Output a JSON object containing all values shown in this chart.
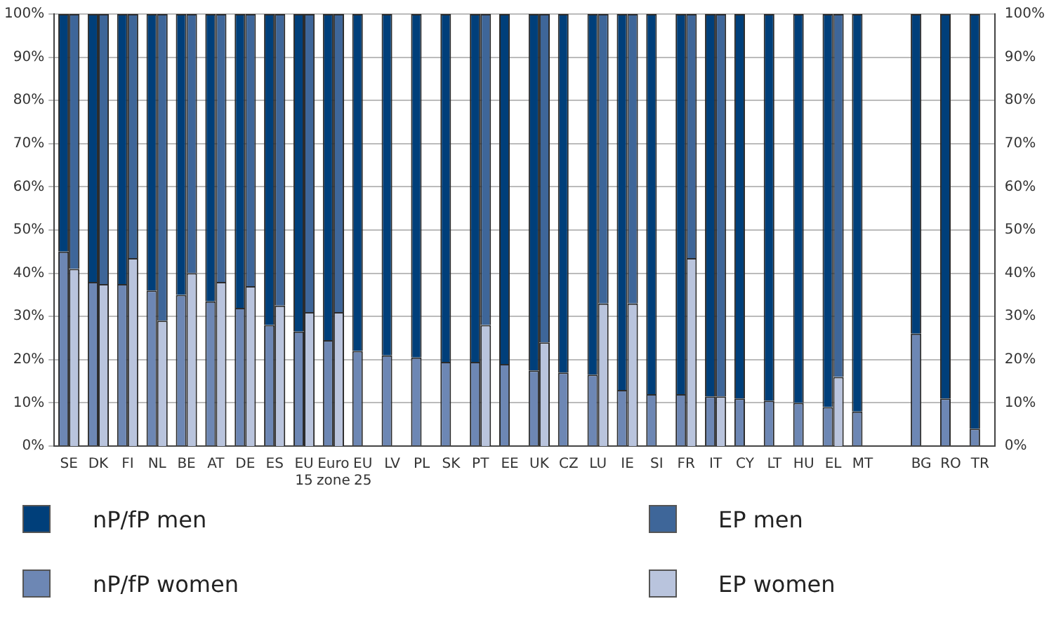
{
  "chart_data": {
    "type": "bar",
    "stacked": true,
    "categories": [
      "SE",
      "DK",
      "FI",
      "NL",
      "BE",
      "AT",
      "DE",
      "ES",
      "EU 15",
      "Euro zone",
      "EU 25",
      "LV",
      "PL",
      "SK",
      "PT",
      "EE",
      "UK",
      "CZ",
      "LU",
      "IE",
      "SI",
      "FR",
      "IT",
      "CY",
      "LT",
      "HU",
      "EL",
      "MT",
      null,
      "BG",
      "RO",
      "TR"
    ],
    "series": [
      {
        "name": "nP/fP women",
        "color": "#6d87b4",
        "values": [
          45,
          38,
          37.5,
          36,
          35,
          33.5,
          32,
          28,
          26.5,
          24.5,
          22,
          21,
          20.5,
          19.5,
          19.5,
          19,
          17.5,
          17,
          16.5,
          13,
          12,
          12,
          11.5,
          11,
          10.5,
          10,
          9,
          8,
          null,
          26,
          11,
          4
        ]
      },
      {
        "name": "nP/fP men",
        "color": "#003f7a",
        "values": [
          55,
          62,
          62.5,
          64,
          65,
          66.5,
          68,
          72,
          73.5,
          75.5,
          78,
          79,
          79.5,
          80.5,
          80.5,
          81,
          82.5,
          83,
          83.5,
          87,
          88,
          88,
          88.5,
          89,
          89.5,
          90,
          91,
          92,
          null,
          74,
          89,
          96
        ]
      },
      {
        "name": "EP women",
        "color": "#b9c4dd",
        "axis": "y2",
        "values": [
          41,
          37.5,
          43.5,
          29,
          40,
          38,
          37,
          32.5,
          31,
          31,
          null,
          null,
          null,
          null,
          28,
          null,
          24,
          null,
          33,
          33,
          null,
          43.5,
          11.5,
          null,
          null,
          null,
          16,
          null,
          null,
          null,
          null,
          null
        ]
      },
      {
        "name": "EP men",
        "color": "#3e6699",
        "axis": "y2",
        "values": [
          59,
          62.5,
          56.5,
          71,
          60,
          62,
          63,
          67.5,
          69,
          69,
          null,
          null,
          null,
          null,
          72,
          null,
          76,
          null,
          67,
          67,
          null,
          56.5,
          88.5,
          null,
          null,
          null,
          84,
          null,
          null,
          null,
          null,
          null
        ]
      }
    ],
    "ylim": [
      0,
      100
    ],
    "yticks": [
      {
        "value": 0,
        "label": "0%"
      },
      {
        "value": 10,
        "label": "10%"
      },
      {
        "value": 20,
        "label": "20%"
      },
      {
        "value": 30,
        "label": "30%"
      },
      {
        "value": 40,
        "label": "40%"
      },
      {
        "value": 50,
        "label": "50%"
      },
      {
        "value": 60,
        "label": "60%"
      },
      {
        "value": 70,
        "label": "70%"
      },
      {
        "value": 80,
        "label": "80%"
      },
      {
        "value": 90,
        "label": "90%"
      },
      {
        "value": 100,
        "label": "100%"
      }
    ],
    "y2lim": [
      0,
      100
    ],
    "y2ticks": [
      {
        "value": 0,
        "label": "0%"
      },
      {
        "value": 10,
        "label": "10%"
      },
      {
        "value": 20,
        "label": "20%"
      },
      {
        "value": 30,
        "label": "30%"
      },
      {
        "value": 40,
        "label": "40%"
      },
      {
        "value": 50,
        "label": "50%"
      },
      {
        "value": 60,
        "label": "60%"
      },
      {
        "value": 70,
        "label": "70%"
      },
      {
        "value": 80,
        "label": "80%"
      },
      {
        "value": 90,
        "label": "90%"
      },
      {
        "value": 100,
        "label": "100%"
      }
    ],
    "grid": "y",
    "legend": "bottom"
  }
}
